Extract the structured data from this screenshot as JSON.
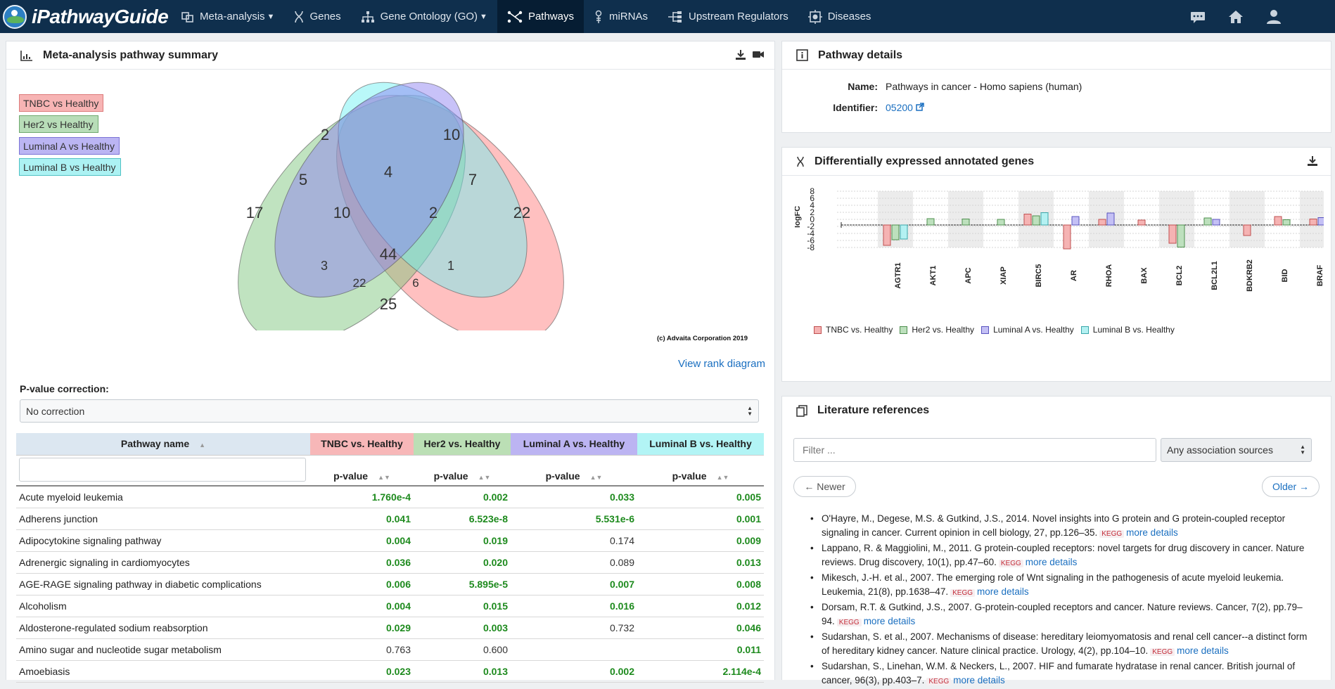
{
  "brand": {
    "name": "iPathwayGuide"
  },
  "nav": {
    "items": [
      {
        "label": "Meta-analysis",
        "caret": true,
        "active": false
      },
      {
        "label": "Genes",
        "caret": false,
        "active": false
      },
      {
        "label": "Gene Ontology (GO)",
        "caret": true,
        "active": false
      },
      {
        "label": "Pathways",
        "caret": false,
        "active": true
      },
      {
        "label": "miRNAs",
        "caret": false,
        "active": false
      },
      {
        "label": "Upstream Regulators",
        "caret": false,
        "active": false
      },
      {
        "label": "Diseases",
        "caret": false,
        "active": false
      }
    ],
    "right_icons": [
      "chat-icon",
      "home-icon",
      "user-icon"
    ]
  },
  "summary": {
    "title": "Meta-analysis pathway summary",
    "legend": [
      {
        "label": "TNBC vs Healthy",
        "color": "#f6b0b0"
      },
      {
        "label": "Her2 vs Healthy",
        "color": "#b3dcb3"
      },
      {
        "label": "Luminal A vs Healthy",
        "color": "#b9b3f3"
      },
      {
        "label": "Luminal B vs Healthy",
        "color": "#a8f2f3"
      }
    ],
    "venn_counts": {
      "her2_only": "17",
      "lumA_only": "2",
      "lumB_only": "10",
      "tnbc_only": "22",
      "her2_lumA": "5",
      "lumA_lumB": "4",
      "lumB_tnbc": "7",
      "her2_lumA_lumB": "10",
      "lumA_lumB_tnbc": "2",
      "all_four": "44",
      "her2_lumB": "3",
      "lumA_tnbc": "1",
      "her2_lumB_tnbc": "22",
      "her2_lumA_tnbc": "6",
      "her2_tnbc": "25"
    },
    "copyright": "(c) Advaita Corporation 2019",
    "rank_link": "View rank diagram",
    "pvalue_label": "P-value correction:",
    "pvalue_selected": "No correction"
  },
  "table": {
    "col_name": "Pathway name",
    "groups": [
      "TNBC vs. Healthy",
      "Her2 vs. Healthy",
      "Luminal A vs. Healthy",
      "Luminal B vs. Healthy"
    ],
    "group_colors": [
      "#f6b7b8",
      "#b9dfb4",
      "#bbb3f2",
      "#b4f4f5"
    ],
    "sub": "p-value",
    "rows": [
      {
        "name": "Acute myeloid leukemia",
        "v": [
          "1.760e-4",
          "0.002",
          "0.033",
          "0.005"
        ],
        "s": [
          true,
          true,
          true,
          true
        ]
      },
      {
        "name": "Adherens junction",
        "v": [
          "0.041",
          "6.523e-8",
          "5.531e-6",
          "0.001"
        ],
        "s": [
          true,
          true,
          true,
          true
        ]
      },
      {
        "name": "Adipocytokine signaling pathway",
        "v": [
          "0.004",
          "0.019",
          "0.174",
          "0.009"
        ],
        "s": [
          true,
          true,
          false,
          true
        ]
      },
      {
        "name": "Adrenergic signaling in cardiomyocytes",
        "v": [
          "0.036",
          "0.020",
          "0.089",
          "0.013"
        ],
        "s": [
          true,
          true,
          false,
          true
        ]
      },
      {
        "name": "AGE-RAGE signaling pathway in diabetic complications",
        "v": [
          "0.006",
          "5.895e-5",
          "0.007",
          "0.008"
        ],
        "s": [
          true,
          true,
          true,
          true
        ]
      },
      {
        "name": "Alcoholism",
        "v": [
          "0.004",
          "0.015",
          "0.016",
          "0.012"
        ],
        "s": [
          true,
          true,
          true,
          true
        ]
      },
      {
        "name": "Aldosterone-regulated sodium reabsorption",
        "v": [
          "0.029",
          "0.003",
          "0.732",
          "0.046"
        ],
        "s": [
          true,
          true,
          false,
          true
        ]
      },
      {
        "name": "Amino sugar and nucleotide sugar metabolism",
        "v": [
          "0.763",
          "0.600",
          "",
          "0.011"
        ],
        "s": [
          false,
          false,
          false,
          true
        ]
      },
      {
        "name": "Amoebiasis",
        "v": [
          "0.023",
          "0.013",
          "0.002",
          "2.114e-4"
        ],
        "s": [
          true,
          true,
          true,
          true
        ]
      }
    ]
  },
  "details": {
    "title": "Pathway details",
    "name_label": "Name:",
    "name_value": "Pathways in cancer - Homo sapiens (human)",
    "id_label": "Identifier:",
    "id_value": "05200"
  },
  "de_genes": {
    "title": "Differentially expressed annotated genes",
    "chart_data": {
      "type": "bar",
      "ylabel": "logFC",
      "y_ticks": [
        "8",
        "6",
        "4",
        "2",
        "0",
        "-2",
        "-4",
        "-6",
        "-8"
      ],
      "ylim": [
        -8,
        8
      ],
      "categories": [
        "AGTR1",
        "AKT1",
        "APC",
        "XIAP",
        "BIRC5",
        "AR",
        "RHOA",
        "BAX",
        "BCL2",
        "BCL2L1",
        "BDKRB2",
        "BID",
        "BRAF"
      ],
      "series": [
        {
          "name": "TNBC vs. Healthy",
          "color": "#f5b3b3",
          "stroke": "#c05050",
          "values": [
            -5.8,
            null,
            null,
            null,
            3.1,
            -6.8,
            1.6,
            1.4,
            -5.2,
            null,
            -3.0,
            2.4,
            1.7
          ]
        },
        {
          "name": "Her2 vs. Healthy",
          "color": "#bde0bd",
          "stroke": "#4f8f4f",
          "values": [
            -4.2,
            1.8,
            1.7,
            1.6,
            2.6,
            null,
            null,
            null,
            -6.3,
            2.0,
            null,
            1.5,
            null
          ]
        },
        {
          "name": "Luminal A vs. Healthy",
          "color": "#c4c0f5",
          "stroke": "#5a54c0",
          "values": [
            null,
            null,
            null,
            null,
            null,
            2.4,
            3.4,
            null,
            null,
            1.6,
            null,
            null,
            2.1
          ]
        },
        {
          "name": "Luminal B vs. Healthy",
          "color": "#b4f1f2",
          "stroke": "#3aa7aa",
          "values": [
            -4.0,
            null,
            null,
            null,
            3.5,
            null,
            null,
            null,
            null,
            null,
            null,
            null,
            null
          ]
        }
      ]
    }
  },
  "literature": {
    "title": "Literature references",
    "filter_placeholder": "Filter ...",
    "source_selected": "Any association sources",
    "newer": "← Newer",
    "older": "Older →",
    "kegg": "KEGG",
    "more": "more details",
    "refs": [
      "O'Hayre, M., Degese, M.S. & Gutkind, J.S., 2014. Novel insights into G protein and G protein-coupled receptor signaling in cancer. Current opinion in cell biology, 27, pp.126–35.",
      "Lappano, R. & Maggiolini, M., 2011. G protein-coupled receptors: novel targets for drug discovery in cancer. Nature reviews. Drug discovery, 10(1), pp.47–60.",
      "Mikesch, J.-H. et al., 2007. The emerging role of Wnt signaling in the pathogenesis of acute myeloid leukemia. Leukemia, 21(8), pp.1638–47.",
      "Dorsam, R.T. & Gutkind, J.S., 2007. G-protein-coupled receptors and cancer. Nature reviews. Cancer, 7(2), pp.79–94.",
      "Sudarshan, S. et al., 2007. Mechanisms of disease: hereditary leiomyomatosis and renal cell cancer--a distinct form of hereditary kidney cancer. Nature clinical practice. Urology, 4(2), pp.104–10.",
      "Sudarshan, S., Linehan, W.M. & Neckers, L., 2007. HIF and fumarate hydratase in renal cancer. British journal of cancer, 96(3), pp.403–7."
    ]
  }
}
